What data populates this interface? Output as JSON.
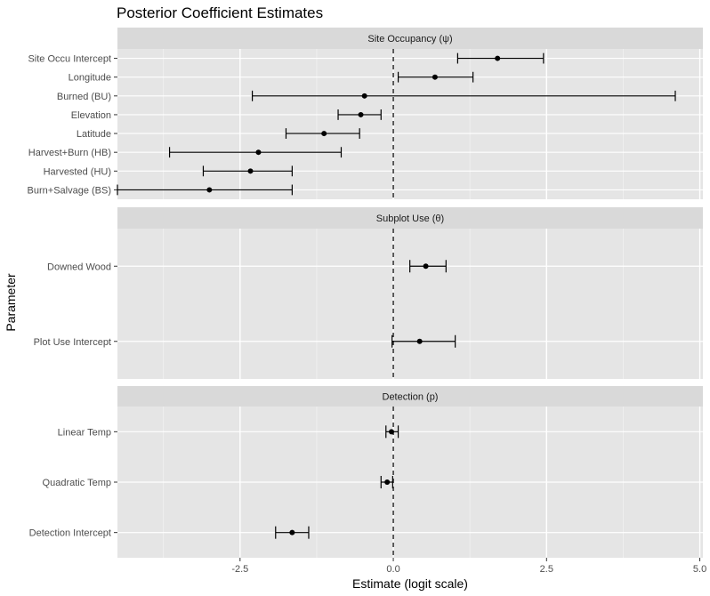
{
  "chart_data": {
    "type": "forest",
    "title": "Posterior Coefficient Estimates",
    "xlabel": "Estimate (logit scale)",
    "ylabel": "Parameter",
    "xlim": [
      -4.5,
      5.05
    ],
    "xticks": [
      -2.5,
      0.0,
      2.5,
      5.0
    ],
    "xtick_labels": [
      "-2.5",
      "0.0",
      "2.5",
      "5.0"
    ],
    "reference_line": 0,
    "grid": true,
    "panels": [
      {
        "name": "Site Occupancy (ψ)",
        "parameters": [
          {
            "label": "Site Occu Intercept",
            "estimate": 1.7,
            "lower": 1.05,
            "upper": 2.45
          },
          {
            "label": "Longitude",
            "estimate": 0.68,
            "lower": 0.08,
            "upper": 1.3
          },
          {
            "label": "Burned (BU)",
            "estimate": -0.47,
            "lower": -2.3,
            "upper": 4.6
          },
          {
            "label": "Elevation",
            "estimate": -0.53,
            "lower": -0.9,
            "upper": -0.2
          },
          {
            "label": "Latitude",
            "estimate": -1.13,
            "lower": -1.75,
            "upper": -0.55
          },
          {
            "label": "Harvest+Burn (HB)",
            "estimate": -2.2,
            "lower": -3.65,
            "upper": -0.85
          },
          {
            "label": "Harvested (HU)",
            "estimate": -2.33,
            "lower": -3.1,
            "upper": -1.65
          },
          {
            "label": "Burn+Salvage (BS)",
            "estimate": -3.0,
            "lower": -4.5,
            "upper": -1.65
          }
        ]
      },
      {
        "name": "Subplot Use (θ)",
        "parameters": [
          {
            "label": "Downed Wood",
            "estimate": 0.53,
            "lower": 0.27,
            "upper": 0.86
          },
          {
            "label": "Plot Use Intercept",
            "estimate": 0.43,
            "lower": -0.02,
            "upper": 1.01
          }
        ]
      },
      {
        "name": "Detection (p)",
        "parameters": [
          {
            "label": "Linear Temp",
            "estimate": -0.03,
            "lower": -0.12,
            "upper": 0.08
          },
          {
            "label": "Quadratic Temp",
            "estimate": -0.1,
            "lower": -0.2,
            "upper": -0.01
          },
          {
            "label": "Detection Intercept",
            "estimate": -1.65,
            "lower": -1.92,
            "upper": -1.38
          }
        ]
      }
    ]
  },
  "colors": {
    "panel_background": "#e5e5e5",
    "strip_background": "#d9d9d9",
    "grid_major": "#ffffff",
    "grid_minor": "#f2f2f2",
    "point": "#000000",
    "errorbar": "#000000",
    "reference_line": "#000000"
  }
}
